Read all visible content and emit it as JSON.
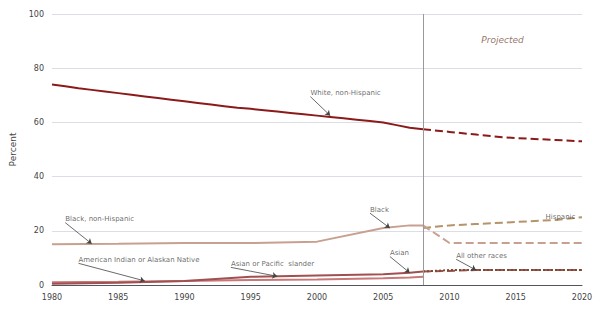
{
  "chart_data": {
    "type": "line",
    "ylabel": "Percent",
    "xlim": [
      1980,
      2020
    ],
    "ylim": [
      0,
      100
    ],
    "xticks": [
      1980,
      1985,
      1990,
      1995,
      2000,
      2005,
      2010,
      2015,
      2020
    ],
    "yticks": [
      0,
      20,
      40,
      60,
      80,
      100
    ],
    "grid": true,
    "series": [
      {
        "x": [
          1980,
          1981,
          1982,
          1983,
          1984,
          1985,
          1986,
          1987,
          1988,
          1989,
          1990,
          1991,
          1992,
          1993,
          1994,
          1995,
          1996,
          1997,
          1998,
          1999,
          2000,
          2001,
          2002,
          2003,
          2004,
          2005,
          2006,
          2007,
          2008
        ],
        "values": [
          74,
          73.3,
          72.6,
          72,
          71.4,
          70.8,
          70.2,
          69.6,
          69,
          68.4,
          67.8,
          67.2,
          66.6,
          66,
          65.4,
          65,
          64.5,
          64,
          63.5,
          63,
          62.5,
          62,
          61.5,
          61,
          60.5,
          60,
          59,
          58,
          57.5
        ],
        "color": "#8b1a1a",
        "line_style": "solid"
      },
      {
        "x": [
          2008,
          2010,
          2012,
          2014,
          2016,
          2018,
          2020
        ],
        "values": [
          57.5,
          56.5,
          55.5,
          54.5,
          54,
          53.5,
          53
        ],
        "color": "#8b1a1a",
        "line_style": "dashed"
      },
      {
        "x": [
          2008,
          2010,
          2012,
          2014,
          2016,
          2018,
          2020
        ],
        "values": [
          21,
          22,
          22.5,
          23,
          23.5,
          24,
          25
        ],
        "color": "#b5936b",
        "line_style": "dashed"
      },
      {
        "x": [
          1980,
          1985,
          1990,
          1995,
          2000,
          2005,
          2007,
          2008
        ],
        "values": [
          15,
          15.2,
          15.5,
          15.5,
          16,
          21,
          22,
          22
        ],
        "color": "#c8a090",
        "line_style": "solid"
      },
      {
        "x": [
          2008,
          2010,
          2012,
          2014,
          2016,
          2018,
          2020
        ],
        "values": [
          22,
          15.5,
          15.5,
          15.5,
          15.5,
          15.5,
          15.5
        ],
        "color": "#c8a090",
        "line_style": "dashed"
      },
      {
        "x": [
          1980,
          1985,
          1990,
          1995,
          2000,
          2005,
          2007,
          2008
        ],
        "values": [
          1,
          1.2,
          1.5,
          1.8,
          2,
          2.5,
          2.8,
          3
        ],
        "color": "#c87878",
        "line_style": "solid"
      },
      {
        "x": [
          1980,
          1985,
          1990,
          1995,
          2000,
          2005,
          2007,
          2008
        ],
        "values": [
          0.5,
          0.8,
          1.5,
          3,
          3.5,
          4,
          4.5,
          5
        ],
        "color": "#a05050",
        "line_style": "solid"
      },
      {
        "x": [
          2008,
          2010,
          2012,
          2014,
          2016,
          2018,
          2020
        ],
        "values": [
          5,
          5.2,
          5.5,
          5.5,
          5.5,
          5.5,
          5.5
        ],
        "color": "#a05050",
        "line_style": "dashed"
      },
      {
        "x": [
          2008,
          2010,
          2012,
          2014,
          2016,
          2018,
          2020
        ],
        "values": [
          5,
          5.5,
          5.5,
          5.5,
          5.5,
          5.5,
          5.5
        ],
        "color": "#7a4a30",
        "line_style": "dotted"
      }
    ],
    "projection": {
      "x": 2008,
      "label": "Projected",
      "label_x": 2014,
      "label_y": 92
    },
    "annotations": [
      {
        "text": "White, non-Hispanic",
        "x": 1999.5,
        "y": 69.5,
        "arrow_to": [
          2001,
          62.5
        ]
      },
      {
        "text": "Black, non-Hispanic",
        "x": 1981,
        "y": 23,
        "arrow_to": [
          1983,
          15.2
        ]
      },
      {
        "text": "American Indian or Alaskan Native",
        "x": 1982,
        "y": 8,
        "arrow_to": [
          1987,
          1.5
        ]
      },
      {
        "text": "Asian or Pacific  slander",
        "x": 1993.5,
        "y": 6.5,
        "arrow_to": [
          1997,
          3.2
        ]
      },
      {
        "text": "Black",
        "x": 2004,
        "y": 26.5,
        "arrow_to": [
          2005.5,
          21
        ]
      },
      {
        "text": "Asian",
        "x": 2005.5,
        "y": 10.5,
        "arrow_to": [
          2007,
          4.5
        ]
      },
      {
        "text": "All other races",
        "x": 2010.5,
        "y": 9.5,
        "arrow_to": [
          2012,
          5.5
        ]
      },
      {
        "text": "Hispanic",
        "x": 2019.5,
        "y": 25
      }
    ]
  }
}
